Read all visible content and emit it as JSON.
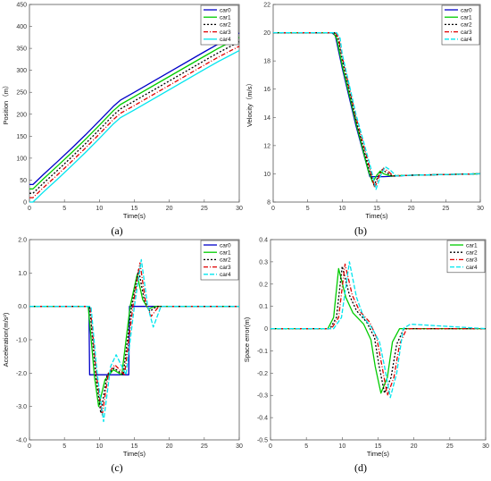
{
  "colors": {
    "car0": "#0000c8",
    "car1": "#00cc00",
    "car2": "#000000",
    "car3": "#e00000",
    "car4": "#00e5ee"
  },
  "chart_data": [
    {
      "id": "a",
      "type": "line",
      "sublabel": "(a)",
      "xlabel": "Time(s)",
      "ylabel": "Position（m）",
      "xlim": [
        0,
        30
      ],
      "ylim": [
        0,
        450
      ],
      "xticks": [
        "0",
        "5",
        "10",
        "15",
        "20",
        "25",
        "30"
      ],
      "yticks": [
        "0",
        "50",
        "100",
        "150",
        "200",
        "250",
        "300",
        "350",
        "400",
        "450"
      ],
      "legend_position": "top-right",
      "series": [
        {
          "name": "car0",
          "key": "car0",
          "dash": "",
          "x": [
            0,
            0.5,
            2,
            4,
            6,
            8,
            10,
            12,
            13,
            15,
            20,
            25,
            27,
            30
          ],
          "y": [
            40,
            40,
            63,
            92,
            122,
            153,
            185,
            218,
            232,
            250,
            296,
            342,
            360,
            385
          ]
        },
        {
          "name": "car1",
          "key": "car1",
          "dash": "",
          "x": [
            0,
            0.5,
            2,
            4,
            6,
            8,
            10,
            12,
            13,
            15,
            20,
            25,
            27,
            30
          ],
          "y": [
            30,
            30,
            53,
            82,
            112,
            143,
            175,
            208,
            222,
            240,
            286,
            332,
            350,
            375
          ]
        },
        {
          "name": "car2",
          "key": "car2",
          "dash": "2,2",
          "x": [
            0,
            0.5,
            2,
            4,
            6,
            8,
            10,
            12,
            13,
            15,
            20,
            25,
            27,
            30
          ],
          "y": [
            20,
            20,
            43,
            72,
            102,
            133,
            165,
            198,
            212,
            230,
            276,
            322,
            340,
            365
          ]
        },
        {
          "name": "car3",
          "key": "car3",
          "dash": "5,2,1,2",
          "x": [
            0,
            0.5,
            2,
            4,
            6,
            8,
            10,
            12,
            13,
            15,
            20,
            25,
            27,
            30
          ],
          "y": [
            10,
            10,
            33,
            62,
            92,
            123,
            155,
            188,
            202,
            220,
            266,
            312,
            330,
            355
          ]
        },
        {
          "name": "car4",
          "key": "car4",
          "dash": "",
          "x": [
            0,
            0.5,
            2,
            4,
            6,
            8,
            10,
            12,
            13,
            15,
            20,
            25,
            27,
            30
          ],
          "y": [
            0,
            0,
            23,
            52,
            82,
            113,
            145,
            178,
            192,
            210,
            256,
            302,
            320,
            345
          ]
        }
      ]
    },
    {
      "id": "b",
      "type": "line",
      "sublabel": "(b)",
      "xlabel": "Time(s)",
      "ylabel": "Velocity（m/s）",
      "xlim": [
        0,
        30
      ],
      "ylim": [
        8,
        22
      ],
      "xticks": [
        "0",
        "5",
        "10",
        "15",
        "20",
        "25",
        "30"
      ],
      "yticks": [
        "8",
        "10",
        "12",
        "14",
        "16",
        "18",
        "20",
        "22"
      ],
      "legend_position": "top-right",
      "series": [
        {
          "name": "car0",
          "key": "car0",
          "dash": "",
          "x": [
            0,
            8.5,
            9,
            10,
            12,
            14,
            14.3,
            15,
            16,
            20,
            30
          ],
          "y": [
            20,
            20,
            19.8,
            17.5,
            13.4,
            9.8,
            9.8,
            9.8,
            9.8,
            9.9,
            10
          ]
        },
        {
          "name": "car1",
          "key": "car1",
          "dash": "",
          "x": [
            0,
            8.7,
            9.2,
            10,
            12,
            13.8,
            14.4,
            15,
            15.5,
            16,
            17,
            20,
            30
          ],
          "y": [
            20,
            20,
            19.6,
            17.7,
            13.6,
            10.2,
            9.4,
            9.9,
            10.2,
            10,
            9.85,
            9.9,
            10
          ]
        },
        {
          "name": "car2",
          "key": "car2",
          "dash": "2,2",
          "x": [
            0,
            8.9,
            9.4,
            10,
            12,
            13.9,
            14.6,
            15.3,
            15.8,
            16.4,
            17.2,
            20,
            30
          ],
          "y": [
            20,
            20,
            19.6,
            18.1,
            13.8,
            10.3,
            9.2,
            9.9,
            10.3,
            10.1,
            9.85,
            9.9,
            10
          ]
        },
        {
          "name": "car3",
          "key": "car3",
          "dash": "5,2,1,2",
          "x": [
            0,
            9,
            9.5,
            10,
            12,
            14,
            14.7,
            15.4,
            16,
            16.6,
            17.4,
            20,
            30
          ],
          "y": [
            20,
            20,
            19.6,
            18.3,
            14,
            10.4,
            9,
            9.9,
            10.4,
            10.2,
            9.85,
            9.9,
            10
          ]
        },
        {
          "name": "car4",
          "key": "car4",
          "dash": "5,2",
          "x": [
            0,
            9.2,
            9.7,
            10,
            12,
            14.1,
            14.9,
            15.6,
            16.2,
            16.9,
            17.8,
            20,
            30
          ],
          "y": [
            20,
            20,
            19.6,
            18.5,
            14.2,
            10.5,
            8.9,
            9.9,
            10.5,
            10.3,
            9.85,
            9.9,
            10
          ]
        }
      ]
    },
    {
      "id": "c",
      "type": "line",
      "sublabel": "(c)",
      "xlabel": "Time(s)",
      "ylabel": "Acceleration(m/s²)",
      "xlim": [
        0,
        30
      ],
      "ylim": [
        -4,
        2
      ],
      "xticks": [
        "0",
        "5",
        "10",
        "15",
        "20",
        "25",
        "30"
      ],
      "yticks": [
        "-4.0",
        "-3.0",
        "-2.0",
        "-1.0",
        "0.0",
        "1.0",
        "2.0"
      ],
      "legend_position": "top-right",
      "series": [
        {
          "name": "car0",
          "key": "car0",
          "dash": "",
          "x": [
            0,
            8.5,
            8.6,
            14.2,
            14.3,
            30
          ],
          "y": [
            0,
            0,
            -2.05,
            -2.05,
            0,
            0
          ]
        },
        {
          "name": "car1",
          "key": "car1",
          "dash": "",
          "x": [
            0,
            8.4,
            9.3,
            9.9,
            10.8,
            12,
            13.2,
            14.4,
            15.4,
            16.2,
            17,
            18,
            30
          ],
          "y": [
            0,
            0,
            -2.1,
            -3,
            -2.2,
            -1.9,
            -2.05,
            0,
            0.95,
            0.2,
            -0.08,
            0,
            0
          ]
        },
        {
          "name": "car2",
          "key": "car2",
          "dash": "2,2",
          "x": [
            0,
            8.6,
            9.5,
            10.2,
            11.1,
            12.1,
            13.4,
            14.6,
            15.6,
            16.4,
            17.2,
            18.2,
            30
          ],
          "y": [
            0,
            0,
            -2.1,
            -3.2,
            -2.05,
            -1.85,
            -2.05,
            0,
            1.1,
            0.2,
            -0.15,
            0,
            0
          ]
        },
        {
          "name": "car3",
          "key": "car3",
          "dash": "5,2,1,2",
          "x": [
            0,
            8.7,
            9.6,
            10.4,
            11.3,
            12.2,
            13.6,
            14.8,
            15.8,
            16.6,
            17.4,
            18.5,
            30
          ],
          "y": [
            0,
            0,
            -2.1,
            -3.25,
            -2,
            -1.75,
            -2.05,
            0,
            1.3,
            0.15,
            -0.3,
            0,
            0
          ]
        },
        {
          "name": "car4",
          "key": "car4",
          "dash": "5,2",
          "x": [
            0,
            8.8,
            9.7,
            10.6,
            11.6,
            12.4,
            13.8,
            15,
            16,
            16.9,
            17.7,
            18.8,
            30
          ],
          "y": [
            0,
            0,
            -2.05,
            -3.45,
            -1.8,
            -1.45,
            -2.05,
            0,
            1.4,
            0,
            -0.62,
            0,
            0
          ]
        }
      ]
    },
    {
      "id": "d",
      "type": "line",
      "sublabel": "(d)",
      "xlabel": "Time(s)",
      "ylabel": "Space error(m)",
      "xlim": [
        0,
        30
      ],
      "ylim": [
        -0.5,
        0.4
      ],
      "xticks": [
        "0",
        "5",
        "10",
        "15",
        "20",
        "25",
        "30"
      ],
      "yticks": [
        "-0.5",
        "-0.4",
        "-0.3",
        "-0.2",
        "-0.1",
        "0",
        "0.1",
        "0.2",
        "0.3",
        "0.4"
      ],
      "legend_position": "top-right",
      "series": [
        {
          "name": "car1",
          "key": "car1",
          "dash": "",
          "x": [
            0,
            8,
            8.8,
            9.5,
            10.5,
            11.5,
            13,
            14,
            14.6,
            15.4,
            16.3,
            17,
            18,
            30
          ],
          "y": [
            0,
            0,
            0.05,
            0.27,
            0.14,
            0.07,
            0.02,
            -0.05,
            -0.17,
            -0.29,
            -0.22,
            -0.06,
            0,
            0
          ]
        },
        {
          "name": "car2",
          "key": "car2",
          "dash": "2,2",
          "x": [
            0,
            8.3,
            9.2,
            10,
            11,
            12,
            13.4,
            14.5,
            15.1,
            15.9,
            16.8,
            17.6,
            18.6,
            30
          ],
          "y": [
            0,
            0,
            0.05,
            0.28,
            0.15,
            0.08,
            0.03,
            -0.04,
            -0.16,
            -0.29,
            -0.22,
            -0.07,
            0,
            0
          ]
        },
        {
          "name": "car3",
          "key": "car3",
          "dash": "5,2,1,2",
          "x": [
            0,
            8.5,
            9.5,
            10.4,
            11.4,
            12.4,
            13.8,
            14.8,
            15.5,
            16.3,
            17.2,
            18,
            19,
            30
          ],
          "y": [
            0,
            0,
            0.05,
            0.29,
            0.15,
            0.08,
            0.03,
            -0.04,
            -0.16,
            -0.3,
            -0.22,
            -0.07,
            0,
            0
          ]
        },
        {
          "name": "car4",
          "key": "car4",
          "dash": "5,2",
          "x": [
            0,
            8.8,
            9.9,
            11,
            12,
            13,
            14.2,
            15.2,
            15.9,
            16.7,
            17.6,
            18.5,
            19.5,
            30
          ],
          "y": [
            0,
            0,
            0.05,
            0.3,
            0.14,
            0.05,
            0.0,
            -0.06,
            -0.17,
            -0.31,
            -0.2,
            0,
            0.02,
            0
          ]
        }
      ]
    }
  ]
}
